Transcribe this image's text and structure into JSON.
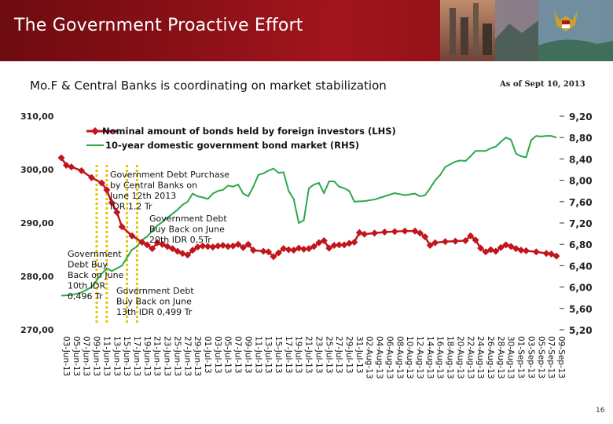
{
  "slide": {
    "title": "The Government Proactive Effort",
    "subtitle": "Mo.F & Central Banks is coordinating on market stabilization",
    "date_note": "As of Sept 10, 2013",
    "page_number": "16"
  },
  "colors": {
    "banner": "#8e1118",
    "foreign_holdings": "#c0161c",
    "bond_yield": "#2aa84a",
    "marker_lines": "#e3c800"
  },
  "chart_data": {
    "type": "line",
    "title": "",
    "y_left": {
      "range": [
        270,
        310
      ],
      "ticks": [
        "310,00",
        "300,00",
        "290,00",
        "280,00",
        "270,00"
      ]
    },
    "y_right": {
      "range": [
        5.2,
        9.2
      ],
      "ticks": [
        "9,20",
        "8,80",
        "8,40",
        "8,00",
        "7,60",
        "7,20",
        "6,80",
        "6,40",
        "6,00",
        "5,60",
        "5,20"
      ]
    },
    "x": [
      "03-Jun-13",
      "05-Jun-13",
      "07-Jun-13",
      "09-Jun-13",
      "11-Jun-13",
      "13-Jun-13",
      "15-Jun-13",
      "17-Jun-13",
      "19-Jun-13",
      "21-Jun-13",
      "23-Jun-13",
      "25-Jun-13",
      "27-Jun-13",
      "29-Jun-13",
      "01-Jul-13",
      "03-Jul-13",
      "05-Jul-13",
      "07-Jul-13",
      "09-Jul-13",
      "11-Jul-13",
      "13-Jul-13",
      "15-Jul-13",
      "17-Jul-13",
      "19-Jul-13",
      "21-Jul-13",
      "23-Jul-13",
      "25-Jul-13",
      "27-Jul-13",
      "29-Jul-13",
      "31-Jul-13",
      "02-Aug-13",
      "04-Aug-13",
      "06-Aug-13",
      "08-Aug-13",
      "10-Aug-13",
      "12-Aug-13",
      "14-Aug-13",
      "16-Aug-13",
      "18-Aug-13",
      "20-Aug-13",
      "22-Aug-13",
      "24-Aug-13",
      "26-Aug-13",
      "28-Aug-13",
      "30-Aug-13",
      "01-Sep-13",
      "03-Sep-13",
      "05-Sep-13",
      "07-Sep-13",
      "09-Sep-13"
    ],
    "series": [
      {
        "name": "Nominal amount of bonds held by foreign investors (LHS)",
        "axis": "left",
        "marker": "diamond",
        "points": [
          [
            0,
            302.2
          ],
          [
            0.5,
            300.8
          ],
          [
            1,
            300.5
          ],
          [
            2,
            299.8
          ],
          [
            3,
            298.5
          ],
          [
            4,
            297.5
          ],
          [
            4.5,
            296.2
          ],
          [
            5,
            293.8
          ],
          [
            5.5,
            292.0
          ],
          [
            6,
            289.3
          ],
          [
            7,
            287.6
          ],
          [
            8,
            286.4
          ],
          [
            8.5,
            285.9
          ],
          [
            9,
            285.2
          ],
          [
            9.5,
            286.3
          ],
          [
            10,
            286.0
          ],
          [
            10.5,
            285.6
          ],
          [
            11,
            285.2
          ],
          [
            11.5,
            284.7
          ],
          [
            12,
            284.3
          ],
          [
            12.5,
            284.0
          ],
          [
            13,
            284.9
          ],
          [
            13.5,
            285.5
          ],
          [
            14,
            285.7
          ],
          [
            14.5,
            285.6
          ],
          [
            15,
            285.5
          ],
          [
            15.5,
            285.7
          ],
          [
            16,
            285.8
          ],
          [
            16.5,
            285.6
          ],
          [
            17,
            285.7
          ],
          [
            17.5,
            286.0
          ],
          [
            18,
            285.4
          ],
          [
            18.5,
            286.0
          ],
          [
            19,
            284.9
          ],
          [
            20,
            284.7
          ],
          [
            20.5,
            284.6
          ],
          [
            21,
            283.7
          ],
          [
            21.5,
            284.4
          ],
          [
            22,
            285.2
          ],
          [
            22.5,
            285.0
          ],
          [
            23,
            284.9
          ],
          [
            23.5,
            285.3
          ],
          [
            24,
            285.1
          ],
          [
            24.5,
            285.2
          ],
          [
            25,
            285.6
          ],
          [
            25.5,
            286.3
          ],
          [
            26,
            286.7
          ],
          [
            26.5,
            285.3
          ],
          [
            27,
            285.8
          ],
          [
            27.5,
            285.9
          ],
          [
            28,
            285.9
          ],
          [
            28.5,
            286.2
          ],
          [
            29,
            286.4
          ],
          [
            29.5,
            288.2
          ],
          [
            30,
            287.9
          ],
          [
            31,
            288.1
          ],
          [
            32,
            288.3
          ],
          [
            33,
            288.4
          ],
          [
            34,
            288.5
          ],
          [
            35,
            288.5
          ],
          [
            35.5,
            288.1
          ],
          [
            36,
            287.4
          ],
          [
            36.5,
            285.8
          ],
          [
            37,
            286.3
          ],
          [
            38,
            286.5
          ],
          [
            39,
            286.6
          ],
          [
            40,
            286.7
          ],
          [
            40.5,
            287.6
          ],
          [
            41,
            286.8
          ],
          [
            41.5,
            285.3
          ],
          [
            42,
            284.6
          ],
          [
            42.5,
            285.0
          ],
          [
            43,
            284.7
          ],
          [
            43.5,
            285.4
          ],
          [
            44,
            285.9
          ],
          [
            44.5,
            285.6
          ],
          [
            45,
            285.2
          ],
          [
            45.5,
            284.9
          ],
          [
            46,
            284.8
          ],
          [
            47,
            284.6
          ],
          [
            48,
            284.3
          ],
          [
            48.5,
            284.2
          ],
          [
            49,
            283.8
          ]
        ]
      },
      {
        "name": "10-year domestic government bond market (RHS)",
        "axis": "right",
        "points": [
          [
            0,
            5.84
          ],
          [
            1,
            5.85
          ],
          [
            2,
            5.9
          ],
          [
            3,
            6.0
          ],
          [
            4,
            6.25
          ],
          [
            4.5,
            6.35
          ],
          [
            5,
            6.3
          ],
          [
            5.5,
            6.35
          ],
          [
            6,
            6.4
          ],
          [
            6.5,
            6.55
          ],
          [
            7,
            6.7
          ],
          [
            7.5,
            6.76
          ],
          [
            8,
            6.88
          ],
          [
            8.5,
            6.95
          ],
          [
            9,
            7.05
          ],
          [
            9.5,
            7.15
          ],
          [
            10,
            7.22
          ],
          [
            10.5,
            7.3
          ],
          [
            11,
            7.37
          ],
          [
            11.5,
            7.45
          ],
          [
            12,
            7.54
          ],
          [
            12.5,
            7.6
          ],
          [
            13,
            7.75
          ],
          [
            13.5,
            7.7
          ],
          [
            14,
            7.68
          ],
          [
            14.5,
            7.65
          ],
          [
            15,
            7.75
          ],
          [
            15.5,
            7.8
          ],
          [
            16,
            7.82
          ],
          [
            16.5,
            7.9
          ],
          [
            17,
            7.88
          ],
          [
            17.5,
            7.92
          ],
          [
            18,
            7.75
          ],
          [
            18.5,
            7.7
          ],
          [
            19,
            7.88
          ],
          [
            19.5,
            8.1
          ],
          [
            20,
            8.13
          ],
          [
            20.5,
            8.18
          ],
          [
            21,
            8.22
          ],
          [
            21.5,
            8.14
          ],
          [
            22,
            8.15
          ],
          [
            22.5,
            7.8
          ],
          [
            23,
            7.65
          ],
          [
            23.5,
            7.2
          ],
          [
            24,
            7.25
          ],
          [
            24.5,
            7.85
          ],
          [
            25,
            7.92
          ],
          [
            25.5,
            7.95
          ],
          [
            26,
            7.76
          ],
          [
            26.5,
            7.98
          ],
          [
            27,
            7.98
          ],
          [
            27.5,
            7.88
          ],
          [
            28,
            7.85
          ],
          [
            28.5,
            7.8
          ],
          [
            29,
            7.6
          ],
          [
            30,
            7.61
          ],
          [
            31,
            7.64
          ],
          [
            32,
            7.7
          ],
          [
            33,
            7.76
          ],
          [
            34,
            7.72
          ],
          [
            35,
            7.75
          ],
          [
            35.5,
            7.7
          ],
          [
            36,
            7.72
          ],
          [
            36.5,
            7.85
          ],
          [
            37,
            8.0
          ],
          [
            37.5,
            8.1
          ],
          [
            38,
            8.25
          ],
          [
            39,
            8.35
          ],
          [
            39.5,
            8.37
          ],
          [
            40,
            8.36
          ],
          [
            40.5,
            8.45
          ],
          [
            41,
            8.55
          ],
          [
            42,
            8.55
          ],
          [
            42.5,
            8.6
          ],
          [
            43,
            8.63
          ],
          [
            43.5,
            8.72
          ],
          [
            44,
            8.8
          ],
          [
            44.5,
            8.76
          ],
          [
            45,
            8.5
          ],
          [
            45.5,
            8.45
          ],
          [
            46,
            8.43
          ],
          [
            46.5,
            8.75
          ],
          [
            47,
            8.83
          ],
          [
            47.5,
            8.82
          ],
          [
            48,
            8.83
          ],
          [
            48.5,
            8.83
          ],
          [
            49,
            8.8
          ]
        ]
      }
    ],
    "legend": {
      "position": "top-left"
    },
    "grid": false,
    "event_markers": [
      3.5,
      4.5,
      6.5,
      7.5
    ],
    "annotations": [
      {
        "lines": [
          "Government Debt Purchase",
          "by Central Banks on",
          "June 12th 2013",
          "IDR 1.2 Tr"
        ]
      },
      {
        "lines": [
          "Government Debt",
          "Buy Back on June",
          "20th IDR 0,5Tr"
        ]
      },
      {
        "lines": [
          "Government",
          "Debt Buy",
          "Back on June",
          "10th IDR",
          "0,496 Tr"
        ]
      },
      {
        "lines": [
          "Government Debt",
          "Buy Back on June",
          "13th IDR 0,499 Tr"
        ]
      }
    ]
  }
}
